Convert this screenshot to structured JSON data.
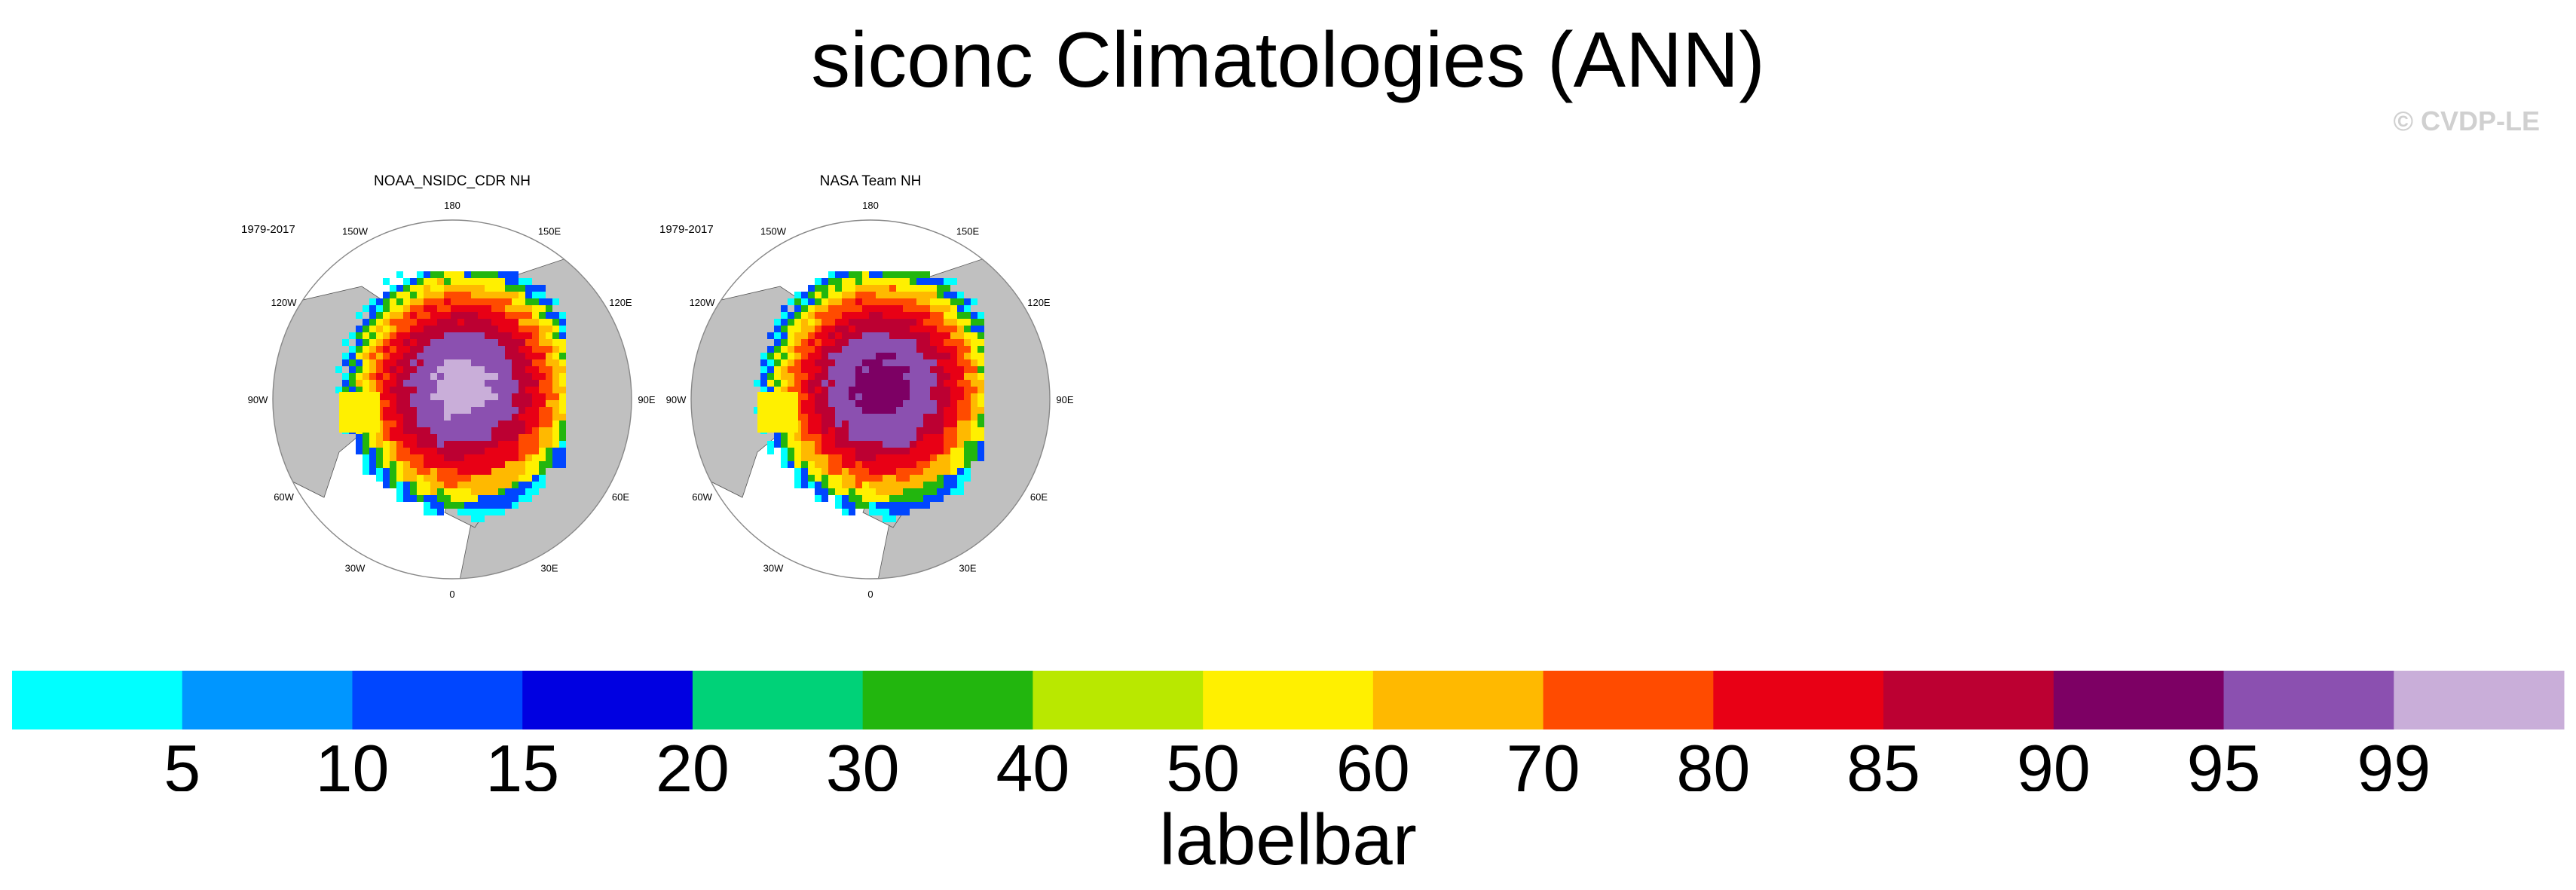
{
  "title": "siconc Climatologies (ANN)",
  "watermark": "© CVDP-LE",
  "maps": [
    {
      "title": "NOAA_NSIDC_CDR NH",
      "period": "1979-2017"
    },
    {
      "title": "NASA Team NH",
      "period": "1979-2017"
    }
  ],
  "longitude_labels": [
    "180",
    "150E",
    "120E",
    "90E",
    "60E",
    "30E",
    "0",
    "30W",
    "60W",
    "90W",
    "120W",
    "150W"
  ],
  "labelbar": {
    "title": "labelbar",
    "tick_labels": [
      "5",
      "10",
      "15",
      "20",
      "30",
      "40",
      "50",
      "60",
      "70",
      "80",
      "85",
      "90",
      "95",
      "99"
    ],
    "colors": [
      "#00ffff",
      "#0096ff",
      "#0046ff",
      "#0000e1",
      "#00d278",
      "#22b60e",
      "#b9e800",
      "#fff000",
      "#ffb900",
      "#ff4b00",
      "#e80015",
      "#bc0032",
      "#7d0064",
      "#8b50b0",
      "#c9aed9"
    ]
  },
  "colors": {
    "land": "#c0c0c0",
    "ocean": "#ffffff",
    "coast": "#555555"
  }
}
